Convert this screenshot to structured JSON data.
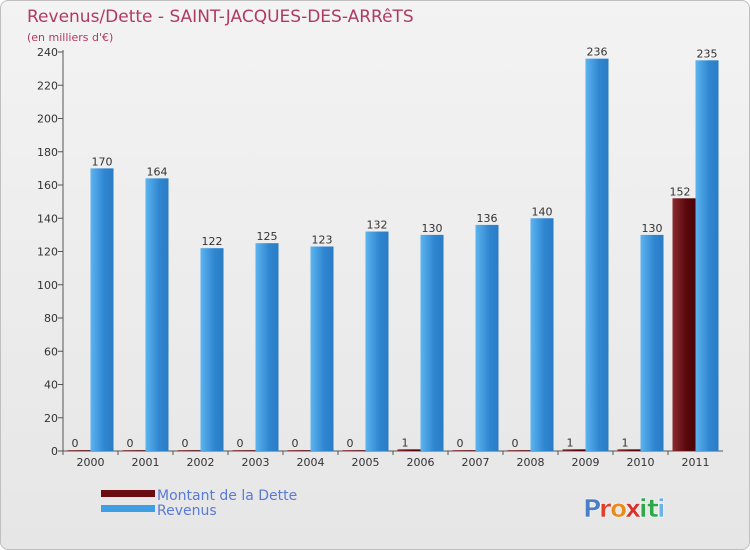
{
  "title": "Revenus/Dette - SAINT-JACQUES-DES-ARRêTS",
  "subtitle": "(en milliers d'€)",
  "logo_text": "Proxiti",
  "colors": {
    "dette": "#6b0d12",
    "revenus": "#3f9fe4",
    "title": "#b03a60",
    "legend_text": "#5a7ad8"
  },
  "chart_data": {
    "type": "bar",
    "categories": [
      "2000",
      "2001",
      "2002",
      "2003",
      "2004",
      "2005",
      "2006",
      "2007",
      "2008",
      "2009",
      "2010",
      "2011"
    ],
    "series": [
      {
        "name": "Montant de la Dette",
        "values": [
          0,
          0,
          0,
          0,
          0,
          0,
          1,
          0,
          0,
          1,
          1,
          152
        ]
      },
      {
        "name": "Revenus",
        "values": [
          170,
          164,
          122,
          125,
          123,
          132,
          130,
          136,
          140,
          236,
          130,
          235
        ]
      }
    ],
    "yticks": [
      0,
      20,
      40,
      60,
      80,
      100,
      120,
      140,
      160,
      180,
      200,
      220,
      240
    ],
    "ylim": [
      0,
      240
    ],
    "grid": false,
    "legend_position": "bottom-left"
  }
}
